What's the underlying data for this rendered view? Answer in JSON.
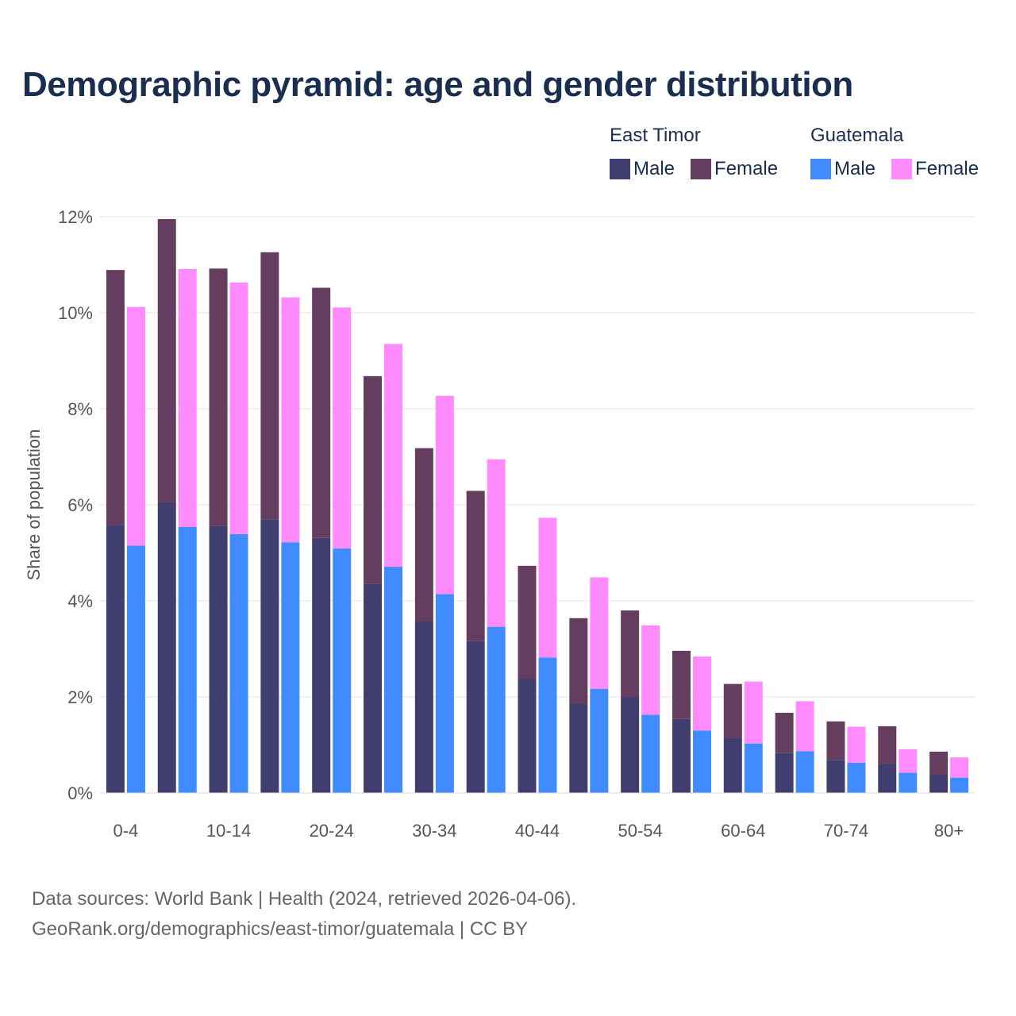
{
  "title": "Demographic pyramid: age and gender distribution",
  "legend": {
    "groups": [
      {
        "country": "East Timor",
        "items": [
          {
            "label": "Male",
            "color": "#403d6f"
          },
          {
            "label": "Female",
            "color": "#643d5f"
          }
        ]
      },
      {
        "country": "Guatemala",
        "items": [
          {
            "label": "Male",
            "color": "#408bff"
          },
          {
            "label": "Female",
            "color": "#ff8bff"
          }
        ]
      }
    ]
  },
  "source": {
    "line1": "Data sources: World Bank | Health (2024, retrieved 2026-04-06).",
    "line2": "GeoRank.org/demographics/east-timor/guatemala | CC BY"
  },
  "chart_data": {
    "type": "bar",
    "stacked": true,
    "ylabel": "Share of population",
    "xlabel": "",
    "ylim": [
      0,
      12
    ],
    "yticks": [
      0,
      2,
      4,
      6,
      8,
      10,
      12
    ],
    "ytick_labels": [
      "0%",
      "2%",
      "4%",
      "6%",
      "8%",
      "10%",
      "12%"
    ],
    "grid": true,
    "categories": [
      "0-4",
      "5-9",
      "10-14",
      "15-19",
      "20-24",
      "25-29",
      "30-34",
      "35-39",
      "40-44",
      "45-49",
      "50-54",
      "55-59",
      "60-64",
      "65-69",
      "70-74",
      "75-79",
      "80+"
    ],
    "xtick_labels": [
      "0-4",
      "",
      "10-14",
      "",
      "20-24",
      "",
      "30-34",
      "",
      "40-44",
      "",
      "50-54",
      "",
      "60-64",
      "",
      "70-74",
      "",
      "80+"
    ],
    "countries": [
      {
        "name": "East Timor",
        "male_color": "#403d6f",
        "female_color": "#643d5f",
        "male": [
          5.58,
          6.05,
          5.56,
          5.7,
          5.31,
          4.36,
          3.57,
          3.16,
          2.38,
          1.86,
          2.0,
          1.54,
          1.15,
          0.83,
          0.69,
          0.61,
          0.38
        ],
        "female": [
          5.31,
          5.9,
          5.36,
          5.56,
          5.21,
          4.32,
          3.61,
          3.13,
          2.35,
          1.78,
          1.8,
          1.42,
          1.12,
          0.84,
          0.8,
          0.78,
          0.48
        ]
      },
      {
        "name": "Guatemala",
        "male_color": "#408bff",
        "female_color": "#ff8bff",
        "male": [
          5.15,
          5.54,
          5.39,
          5.22,
          5.09,
          4.71,
          4.14,
          3.46,
          2.82,
          2.17,
          1.63,
          1.3,
          1.03,
          0.87,
          0.63,
          0.42,
          0.32
        ],
        "female": [
          4.97,
          5.37,
          5.24,
          5.1,
          5.02,
          4.64,
          4.13,
          3.49,
          2.91,
          2.32,
          1.86,
          1.54,
          1.29,
          1.04,
          0.75,
          0.49,
          0.42
        ]
      }
    ]
  }
}
